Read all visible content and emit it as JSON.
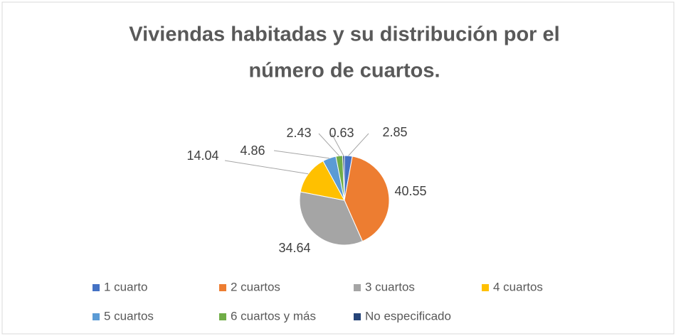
{
  "chart_data": {
    "type": "pie",
    "title": [
      "Viviendas habitadas y su distribución por el",
      "número de cuartos."
    ],
    "categories": [
      "1 cuarto",
      "2 cuartos",
      "3 cuartos",
      "4 cuartos",
      "5 cuartos",
      "6 cuartos y más",
      "No especificado"
    ],
    "values": [
      2.85,
      40.55,
      34.64,
      14.04,
      4.86,
      2.43,
      0.63
    ],
    "colors": [
      "#4472c4",
      "#ed7d31",
      "#a5a5a5",
      "#ffc000",
      "#5b9bd5",
      "#70ad47",
      "#264478"
    ],
    "legend": "bottom"
  }
}
